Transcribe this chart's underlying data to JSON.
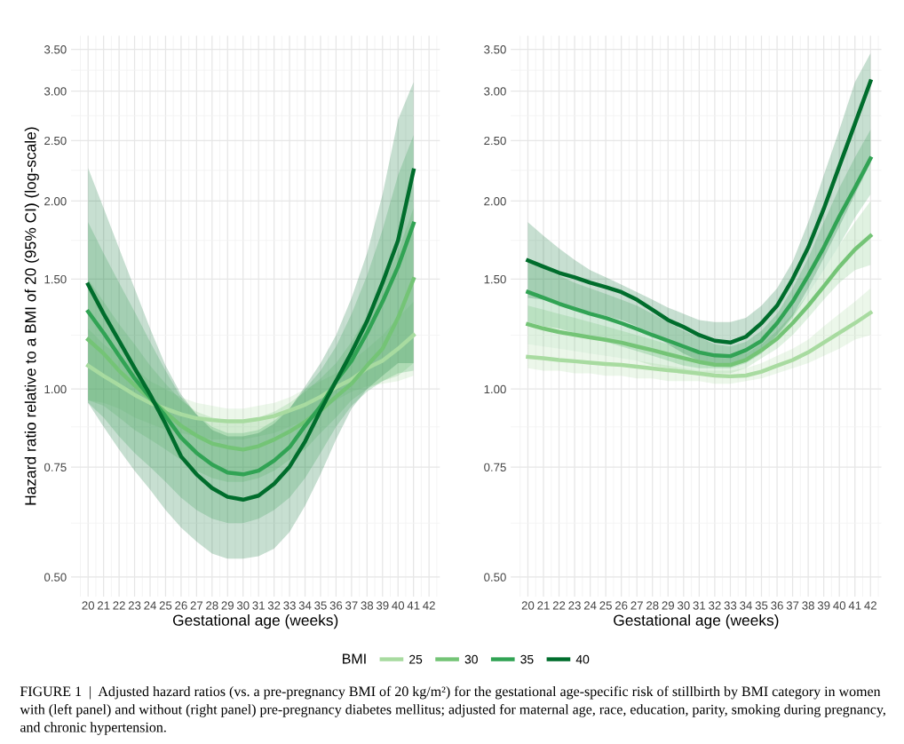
{
  "chart_data": [
    {
      "type": "line",
      "ylabel": "Hazard ratio relative to a BMI of 20 (95% CI) (log-scale)",
      "xlabel": "Gestational age (weeks)",
      "legend_title": "BMI",
      "legend": "bottom",
      "log": true,
      "grid": true,
      "x": [
        20,
        21,
        22,
        23,
        24,
        25,
        26,
        27,
        28,
        29,
        30,
        31,
        32,
        33,
        34,
        35,
        36,
        37,
        38,
        39,
        40,
        41
      ],
      "xlim": [
        18.9,
        42.7
      ],
      "xticks": [
        20,
        21,
        22,
        23,
        24,
        25,
        26,
        27,
        28,
        29,
        30,
        31,
        32,
        33,
        34,
        35,
        36,
        37,
        38,
        39,
        40,
        41,
        42,
        {
          "value": 19.5,
          "label": null
        },
        {
          "value": 20.5,
          "label": null
        },
        {
          "value": 21.5,
          "label": null
        },
        {
          "value": 22.5,
          "label": null
        },
        {
          "value": 23.5,
          "label": null
        },
        {
          "value": 24.5,
          "label": null
        },
        {
          "value": 25.5,
          "label": null
        },
        {
          "value": 26.5,
          "label": null
        },
        {
          "value": 27.5,
          "label": null
        },
        {
          "value": 28.5,
          "label": null
        },
        {
          "value": 29.5,
          "label": null
        },
        {
          "value": 30.5,
          "label": null
        },
        {
          "value": 31.5,
          "label": null
        },
        {
          "value": 32.5,
          "label": null
        },
        {
          "value": 33.5,
          "label": null
        },
        {
          "value": 34.5,
          "label": null
        },
        {
          "value": 35.5,
          "label": null
        },
        {
          "value": 36.5,
          "label": null
        },
        {
          "value": 37.5,
          "label": null
        },
        {
          "value": 38.5,
          "label": null
        },
        {
          "value": 39.5,
          "label": null
        },
        {
          "value": 40.5,
          "label": null
        },
        {
          "value": 41.5,
          "label": null
        },
        {
          "value": 42.5,
          "label": null
        }
      ],
      "ylim": [
        0.465,
        3.68
      ],
      "yticks": [
        {
          "value": 0.5,
          "label": "0.50"
        },
        {
          "value": 0.75,
          "label": "0.75"
        },
        {
          "value": 1.0,
          "label": "1.00"
        },
        {
          "value": 1.5,
          "label": "1.50"
        },
        {
          "value": 2.0,
          "label": "2.00"
        },
        {
          "value": 2.5,
          "label": "2.50"
        },
        {
          "value": 3.0,
          "label": "3.00"
        },
        {
          "value": 3.5,
          "label": "3.50"
        },
        {
          "value": 0.61,
          "label": null
        },
        {
          "value": 0.87,
          "label": null
        },
        {
          "value": 1.22,
          "label": null
        },
        {
          "value": 1.73,
          "label": null
        },
        {
          "value": 2.24,
          "label": null
        },
        {
          "value": 2.74,
          "label": null
        },
        {
          "value": 3.24,
          "label": null
        }
      ],
      "series": [
        {
          "name": "25",
          "color": "#a8dba0",
          "values": [
            1.09,
            1.05,
            1.014,
            0.979,
            0.95,
            0.93,
            0.911,
            0.898,
            0.892,
            0.888,
            0.888,
            0.895,
            0.905,
            0.924,
            0.944,
            0.972,
            1.007,
            1.036,
            1.08,
            1.11,
            1.16,
            1.22
          ],
          "lower": [
            0.96,
            0.95,
            0.93,
            0.9,
            0.88,
            0.86,
            0.85,
            0.84,
            0.83,
            0.83,
            0.83,
            0.84,
            0.85,
            0.87,
            0.89,
            0.92,
            0.96,
            0.99,
            1.01,
            1.02,
            1.03,
            1.05
          ],
          "upper": [
            1.25,
            1.18,
            1.13,
            1.08,
            1.03,
            1.0,
            0.97,
            0.95,
            0.94,
            0.93,
            0.93,
            0.94,
            0.95,
            0.97,
            1.0,
            1.03,
            1.06,
            1.11,
            1.16,
            1.22,
            1.3,
            1.38
          ]
        },
        {
          "name": "30",
          "color": "#74c476",
          "values": [
            1.2,
            1.14,
            1.07,
            1.014,
            0.965,
            0.918,
            0.873,
            0.842,
            0.818,
            0.807,
            0.8,
            0.81,
            0.83,
            0.855,
            0.886,
            0.924,
            0.972,
            1.02,
            1.09,
            1.16,
            1.3,
            1.5
          ],
          "lower": [
            0.96,
            0.94,
            0.9,
            0.86,
            0.83,
            0.8,
            0.77,
            0.74,
            0.72,
            0.71,
            0.71,
            0.72,
            0.74,
            0.77,
            0.8,
            0.85,
            0.9,
            0.96,
            1.0,
            1.03,
            1.05,
            1.1
          ],
          "upper": [
            1.5,
            1.38,
            1.27,
            1.18,
            1.09,
            1.02,
            0.96,
            0.92,
            0.9,
            0.89,
            0.89,
            0.9,
            0.92,
            0.95,
            0.99,
            1.04,
            1.1,
            1.19,
            1.31,
            1.47,
            1.66,
            1.95
          ]
        },
        {
          "name": "35",
          "color": "#31a354",
          "values": [
            1.33,
            1.23,
            1.13,
            1.04,
            0.97,
            0.905,
            0.836,
            0.79,
            0.757,
            0.735,
            0.73,
            0.74,
            0.768,
            0.807,
            0.873,
            0.938,
            1.03,
            1.11,
            1.23,
            1.38,
            1.57,
            1.84
          ],
          "lower": [
            0.95,
            0.9,
            0.84,
            0.79,
            0.75,
            0.71,
            0.67,
            0.64,
            0.62,
            0.61,
            0.61,
            0.62,
            0.64,
            0.67,
            0.72,
            0.79,
            0.87,
            0.94,
            0.99,
            1.03,
            1.06,
            1.07
          ],
          "upper": [
            1.85,
            1.65,
            1.48,
            1.33,
            1.19,
            1.07,
            0.97,
            0.91,
            0.87,
            0.85,
            0.85,
            0.86,
            0.89,
            0.93,
            1.0,
            1.07,
            1.17,
            1.32,
            1.52,
            1.8,
            2.2,
            2.55
          ]
        },
        {
          "name": "40",
          "color": "#006d2c",
          "values": [
            1.47,
            1.32,
            1.195,
            1.08,
            0.98,
            0.879,
            0.78,
            0.73,
            0.694,
            0.672,
            0.665,
            0.675,
            0.705,
            0.751,
            0.824,
            0.924,
            1.03,
            1.145,
            1.284,
            1.48,
            1.73,
            2.24
          ],
          "lower": [
            0.95,
            0.87,
            0.8,
            0.74,
            0.69,
            0.64,
            0.6,
            0.57,
            0.545,
            0.535,
            0.535,
            0.54,
            0.555,
            0.59,
            0.65,
            0.73,
            0.83,
            0.93,
            1.0,
            1.05,
            1.1,
            1.1
          ],
          "upper": [
            2.26,
            1.95,
            1.68,
            1.45,
            1.25,
            1.09,
            0.98,
            0.91,
            0.86,
            0.84,
            0.84,
            0.85,
            0.88,
            0.93,
            1.01,
            1.1,
            1.22,
            1.4,
            1.65,
            2.05,
            2.7,
            3.1
          ]
        }
      ],
      "annotations": [
        "FIGURE 1  |  Adjusted hazard ratios (vs. a pre-pregnancy BMI of 20 kg/m²) for the gestational age-specific risk of stillbirth by BMI category in women with (left panel) and without (right panel) pre-pregnancy diabetes mellitus; adjusted for maternal age, race, education, parity, smoking during pregnancy, and chronic hypertension."
      ]
    },
    {
      "type": "line",
      "xlabel": "Gestational age (weeks)",
      "log": true,
      "grid": true,
      "x": [
        20,
        21,
        22,
        23,
        24,
        25,
        26,
        27,
        28,
        29,
        30,
        31,
        32,
        33,
        34,
        35,
        36,
        37,
        38,
        39,
        40,
        41,
        42
      ],
      "xlim": [
        18.9,
        42.7
      ],
      "xticks": [
        20,
        21,
        22,
        23,
        24,
        25,
        26,
        27,
        28,
        29,
        30,
        31,
        32,
        33,
        34,
        35,
        36,
        37,
        38,
        39,
        40,
        41,
        42,
        {
          "value": 19.5,
          "label": null
        },
        {
          "value": 20.5,
          "label": null
        },
        {
          "value": 21.5,
          "label": null
        },
        {
          "value": 22.5,
          "label": null
        },
        {
          "value": 23.5,
          "label": null
        },
        {
          "value": 24.5,
          "label": null
        },
        {
          "value": 25.5,
          "label": null
        },
        {
          "value": 26.5,
          "label": null
        },
        {
          "value": 27.5,
          "label": null
        },
        {
          "value": 28.5,
          "label": null
        },
        {
          "value": 29.5,
          "label": null
        },
        {
          "value": 30.5,
          "label": null
        },
        {
          "value": 31.5,
          "label": null
        },
        {
          "value": 32.5,
          "label": null
        },
        {
          "value": 33.5,
          "label": null
        },
        {
          "value": 34.5,
          "label": null
        },
        {
          "value": 35.5,
          "label": null
        },
        {
          "value": 36.5,
          "label": null
        },
        {
          "value": 37.5,
          "label": null
        },
        {
          "value": 38.5,
          "label": null
        },
        {
          "value": 39.5,
          "label": null
        },
        {
          "value": 40.5,
          "label": null
        },
        {
          "value": 41.5,
          "label": null
        },
        {
          "value": 42.5,
          "label": null
        }
      ],
      "ylim": [
        0.465,
        3.68
      ],
      "yticks": [
        {
          "value": 0.5,
          "label": "0.50"
        },
        {
          "value": 0.75,
          "label": "0.75"
        },
        {
          "value": 1.0,
          "label": "1.00"
        },
        {
          "value": 1.5,
          "label": "1.50"
        },
        {
          "value": 2.0,
          "label": "2.00"
        },
        {
          "value": 2.5,
          "label": "2.50"
        },
        {
          "value": 3.0,
          "label": "3.00"
        },
        {
          "value": 3.5,
          "label": "3.50"
        },
        {
          "value": 0.61,
          "label": null
        },
        {
          "value": 0.87,
          "label": null
        },
        {
          "value": 1.22,
          "label": null
        },
        {
          "value": 1.73,
          "label": null
        },
        {
          "value": 2.24,
          "label": null
        },
        {
          "value": 2.74,
          "label": null
        },
        {
          "value": 3.24,
          "label": null
        }
      ],
      "series": [
        {
          "name": "25",
          "color": "#a8dba0",
          "values": [
            1.126,
            1.12,
            1.113,
            1.108,
            1.102,
            1.097,
            1.093,
            1.086,
            1.079,
            1.072,
            1.066,
            1.059,
            1.051,
            1.048,
            1.051,
            1.066,
            1.09,
            1.113,
            1.145,
            1.187,
            1.23,
            1.275,
            1.325
          ],
          "lower": [
            1.08,
            1.07,
            1.07,
            1.06,
            1.06,
            1.05,
            1.05,
            1.04,
            1.04,
            1.03,
            1.03,
            1.03,
            1.02,
            1.02,
            1.03,
            1.04,
            1.06,
            1.08,
            1.1,
            1.13,
            1.16,
            1.2,
            1.22
          ],
          "upper": [
            1.18,
            1.17,
            1.16,
            1.15,
            1.14,
            1.13,
            1.12,
            1.11,
            1.1,
            1.09,
            1.08,
            1.07,
            1.07,
            1.07,
            1.08,
            1.1,
            1.13,
            1.16,
            1.2,
            1.26,
            1.32,
            1.38,
            1.45
          ]
        },
        {
          "name": "30",
          "color": "#74c476",
          "values": [
            1.27,
            1.25,
            1.234,
            1.222,
            1.21,
            1.199,
            1.187,
            1.17,
            1.154,
            1.137,
            1.121,
            1.105,
            1.094,
            1.093,
            1.113,
            1.154,
            1.204,
            1.275,
            1.36,
            1.46,
            1.57,
            1.673,
            1.76
          ],
          "lower": [
            1.18,
            1.17,
            1.16,
            1.15,
            1.14,
            1.13,
            1.12,
            1.11,
            1.09,
            1.08,
            1.07,
            1.06,
            1.06,
            1.06,
            1.08,
            1.12,
            1.16,
            1.22,
            1.3,
            1.39,
            1.48,
            1.55,
            1.58
          ],
          "upper": [
            1.36,
            1.34,
            1.32,
            1.3,
            1.28,
            1.26,
            1.24,
            1.22,
            1.2,
            1.18,
            1.16,
            1.14,
            1.13,
            1.13,
            1.14,
            1.18,
            1.24,
            1.32,
            1.42,
            1.55,
            1.7,
            1.85,
            2.0
          ]
        },
        {
          "name": "35",
          "color": "#31a354",
          "values": [
            1.43,
            1.4,
            1.37,
            1.344,
            1.32,
            1.3,
            1.275,
            1.248,
            1.22,
            1.195,
            1.17,
            1.145,
            1.132,
            1.129,
            1.154,
            1.195,
            1.275,
            1.38,
            1.52,
            1.685,
            1.89,
            2.1,
            2.34
          ],
          "lower": [
            1.28,
            1.26,
            1.25,
            1.23,
            1.21,
            1.19,
            1.17,
            1.15,
            1.13,
            1.11,
            1.09,
            1.08,
            1.08,
            1.08,
            1.1,
            1.14,
            1.21,
            1.3,
            1.42,
            1.55,
            1.7,
            1.88,
            2.05
          ],
          "upper": [
            1.6,
            1.56,
            1.52,
            1.48,
            1.45,
            1.42,
            1.39,
            1.36,
            1.32,
            1.28,
            1.24,
            1.21,
            1.18,
            1.17,
            1.19,
            1.24,
            1.32,
            1.45,
            1.62,
            1.85,
            2.1,
            2.35,
            2.6
          ]
        },
        {
          "name": "40",
          "color": "#006d2c",
          "values": [
            1.607,
            1.57,
            1.535,
            1.51,
            1.48,
            1.456,
            1.43,
            1.39,
            1.34,
            1.29,
            1.257,
            1.22,
            1.195,
            1.187,
            1.213,
            1.275,
            1.36,
            1.5,
            1.685,
            1.944,
            2.275,
            2.66,
            3.11
          ],
          "lower": [
            1.4,
            1.39,
            1.37,
            1.35,
            1.33,
            1.31,
            1.29,
            1.26,
            1.22,
            1.18,
            1.14,
            1.11,
            1.09,
            1.09,
            1.11,
            1.15,
            1.22,
            1.31,
            1.45,
            1.62,
            1.82,
            2.05,
            2.3
          ],
          "upper": [
            1.85,
            1.76,
            1.68,
            1.61,
            1.55,
            1.51,
            1.47,
            1.43,
            1.39,
            1.35,
            1.32,
            1.29,
            1.28,
            1.28,
            1.3,
            1.36,
            1.45,
            1.6,
            1.85,
            2.2,
            2.6,
            3.1,
            3.45
          ]
        }
      ]
    }
  ]
}
